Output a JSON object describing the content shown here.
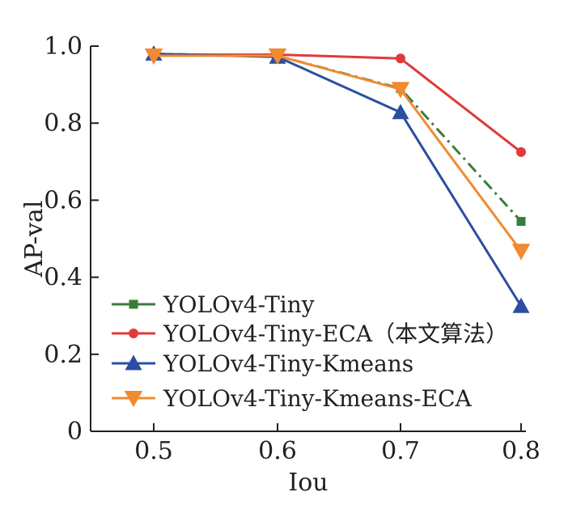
{
  "chart_data": {
    "type": "line",
    "title": "",
    "xlabel": "Iou",
    "ylabel": "AP-val",
    "x": [
      0.5,
      0.6,
      0.7,
      0.8
    ],
    "x_tick_labels": [
      "0.5",
      "0.6",
      "0.7",
      "0.8"
    ],
    "y_ticks": [
      0,
      0.2,
      0.4,
      0.6,
      0.8,
      1.0
    ],
    "y_tick_labels": [
      "0",
      "0.2",
      "0.4",
      "0.6",
      "0.8",
      "1.0"
    ],
    "ylim": [
      0,
      1.0
    ],
    "xlim": [
      0.45,
      0.8
    ],
    "grid": false,
    "legend_position": "bottom-left inside",
    "series": [
      {
        "name": "YOLOv4-Tiny",
        "values": [
          0.98,
          0.975,
          0.89,
          0.545
        ],
        "color": "#3a7d3a",
        "marker": "square",
        "dash": "dashdot"
      },
      {
        "name": "YOLOv4-Tiny-ECA（本文算法）",
        "values": [
          0.978,
          0.978,
          0.968,
          0.725
        ],
        "color": "#e03a3a",
        "marker": "circle",
        "dash": "solid"
      },
      {
        "name": "YOLOv4-Tiny-Kmeans",
        "values": [
          0.98,
          0.972,
          0.828,
          0.325
        ],
        "color": "#2a4fa0",
        "marker": "triangle-up",
        "dash": "solid"
      },
      {
        "name": "YOLOv4-Tiny-Kmeans-ECA",
        "values": [
          0.975,
          0.975,
          0.888,
          0.468
        ],
        "color": "#f28a30",
        "marker": "triangle-down",
        "dash": "solid"
      }
    ]
  }
}
